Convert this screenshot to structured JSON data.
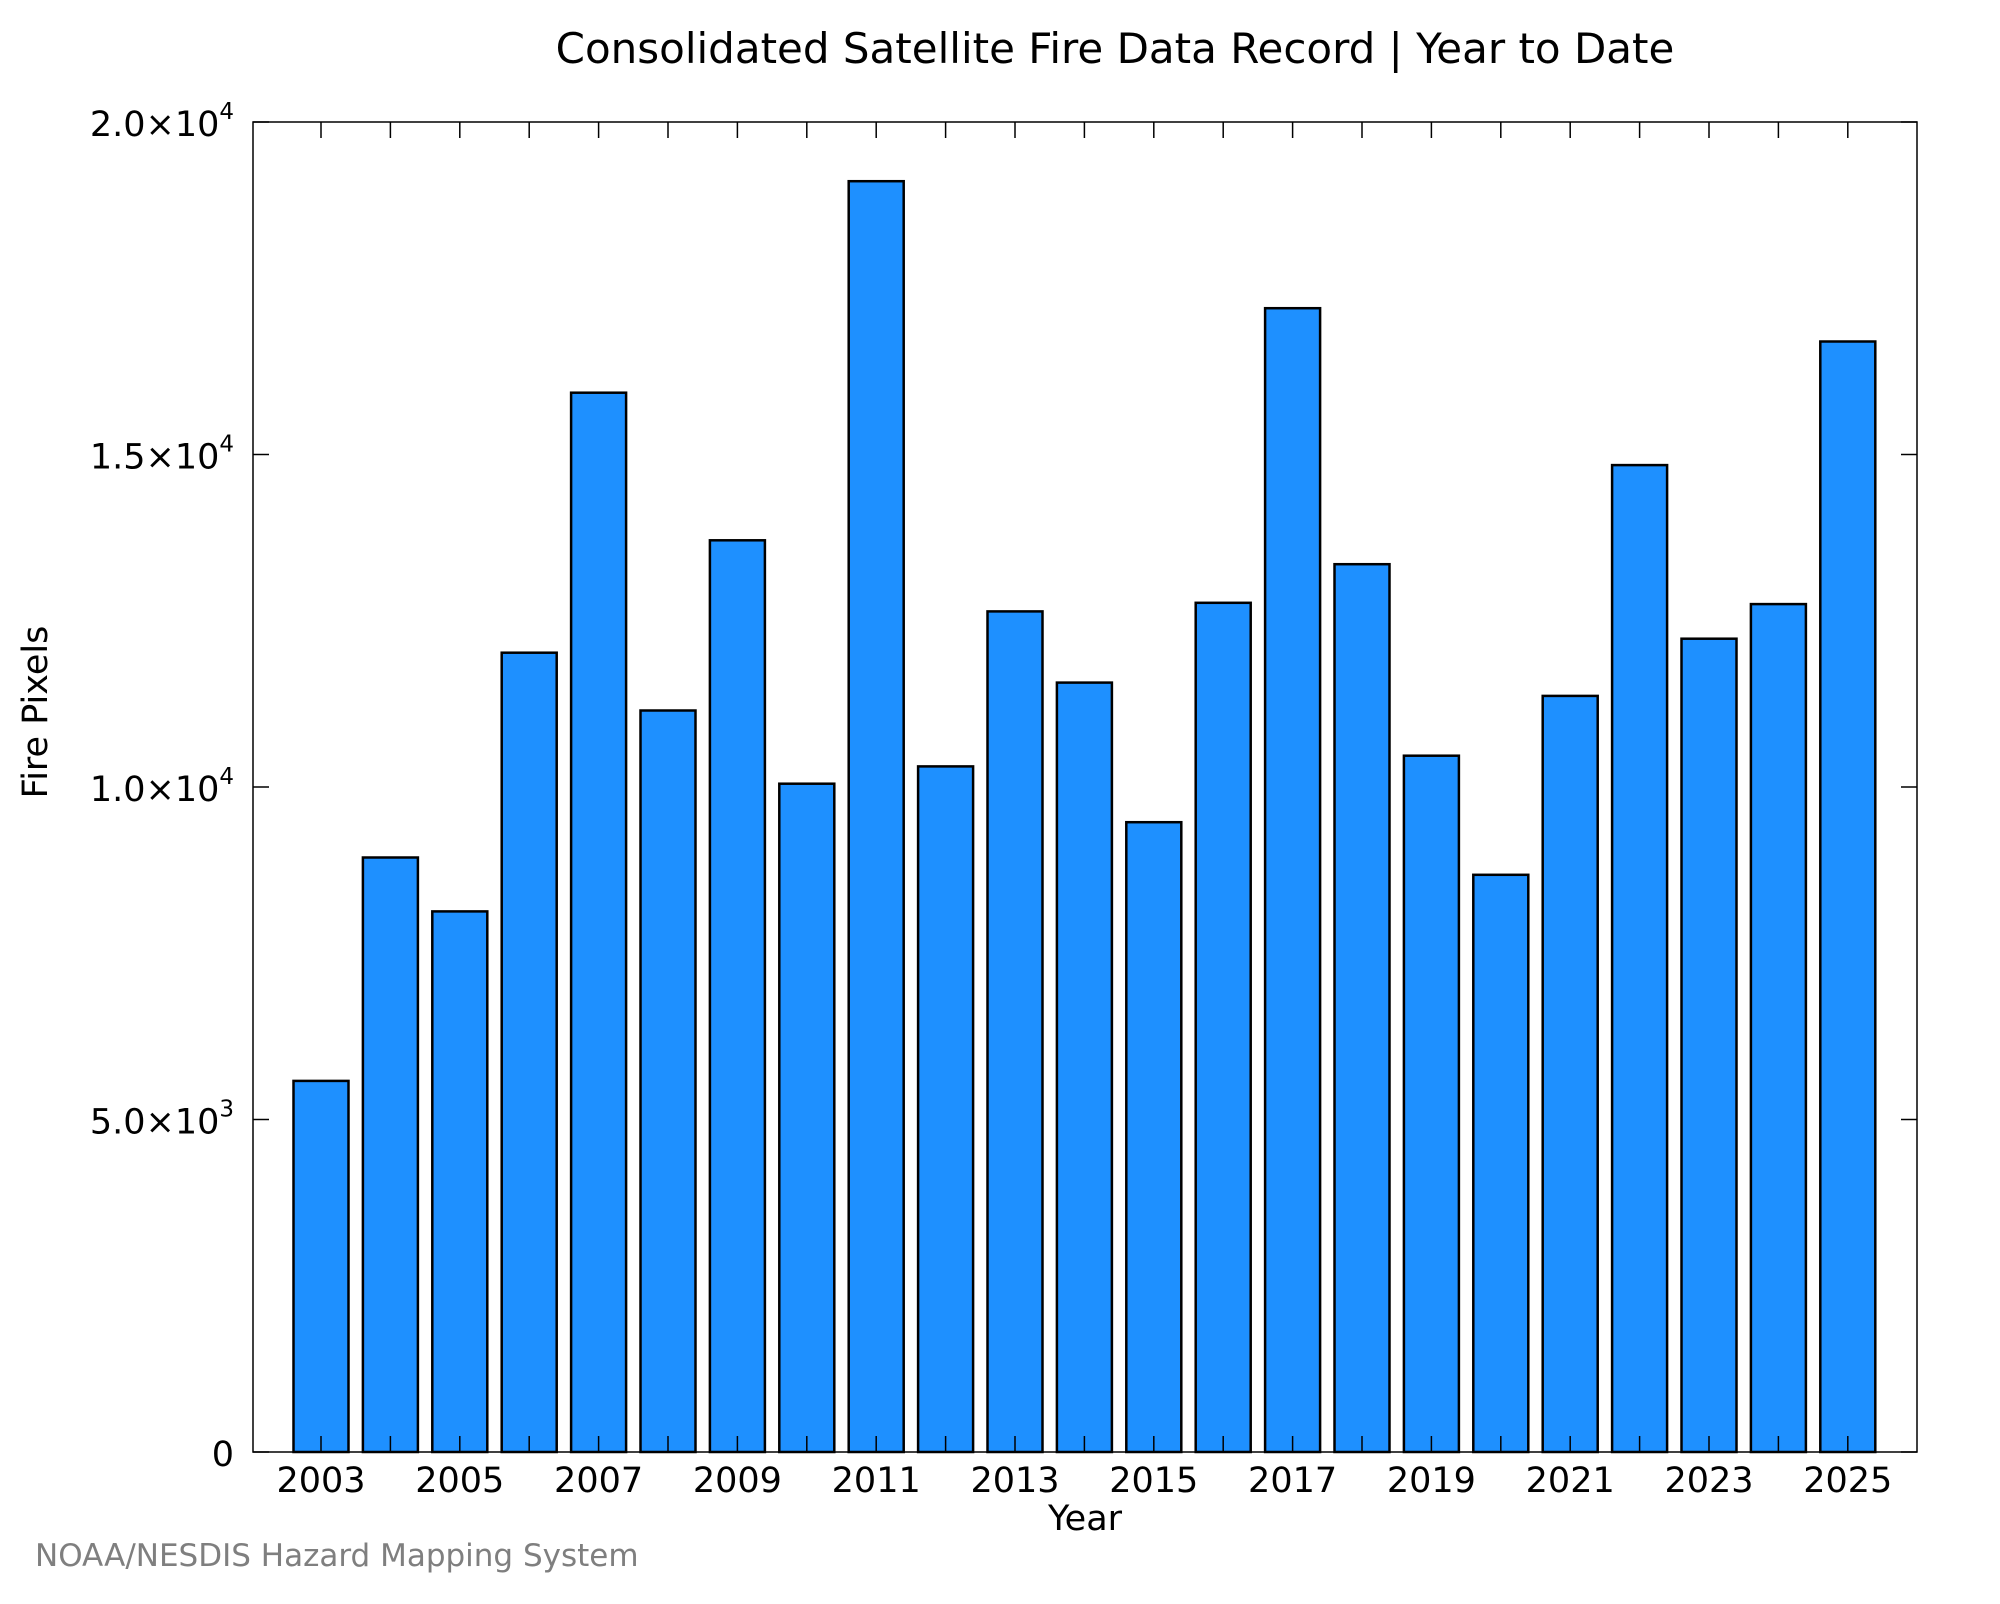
{
  "credit": "NOAA/NESDIS Hazard Mapping System",
  "chart_data": {
    "type": "bar",
    "title": "Consolidated Satellite Fire Data Record | Year to Date",
    "xlabel": "Year",
    "ylabel": "Fire Pixels",
    "categories": [
      "2003",
      "2004",
      "2005",
      "2006",
      "2007",
      "2008",
      "2009",
      "2010",
      "2011",
      "2012",
      "2013",
      "2014",
      "2015",
      "2016",
      "2017",
      "2018",
      "2019",
      "2020",
      "2021",
      "2022",
      "2023",
      "2024",
      "2025"
    ],
    "x_tick_labels": [
      "2003",
      "2005",
      "2007",
      "2009",
      "2011",
      "2013",
      "2015",
      "2017",
      "2019",
      "2021",
      "2023",
      "2025"
    ],
    "values": [
      5580,
      8940,
      8130,
      12020,
      15930,
      11150,
      13710,
      10050,
      19110,
      10310,
      12640,
      11570,
      9470,
      12770,
      17200,
      13350,
      10470,
      8680,
      11370,
      14840,
      12230,
      12750,
      16700
    ],
    "ylim": [
      0,
      20000
    ],
    "y_ticks": [
      {
        "value": 0,
        "mantissa": "0",
        "exponent": ""
      },
      {
        "value": 5000,
        "mantissa": "5.0×10",
        "exponent": "3"
      },
      {
        "value": 10000,
        "mantissa": "1.0×10",
        "exponent": "4"
      },
      {
        "value": 15000,
        "mantissa": "1.5×10",
        "exponent": "4"
      },
      {
        "value": 20000,
        "mantissa": "2.0×10",
        "exponent": "4"
      }
    ],
    "bar_color": "#1e90ff",
    "bar_edge_color": "#000000",
    "grid": false,
    "legend": "none"
  }
}
